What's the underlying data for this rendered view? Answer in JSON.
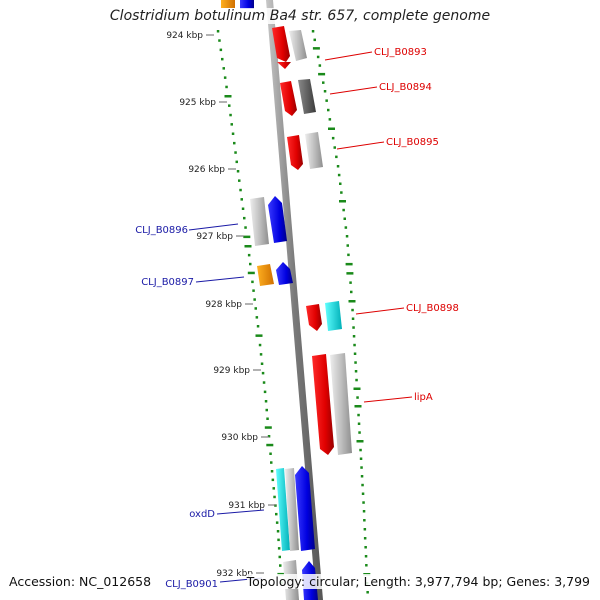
{
  "title": "Clostridium botulinum Ba4 str. 657, complete genome",
  "footer": {
    "accession": "Accession: NC_012658",
    "summary": "Topology: circular; Length: 3,977,794 bp; Genes: 3,799"
  },
  "ticks": [
    "924 kbp",
    "925 kbp",
    "926 kbp",
    "927 kbp",
    "928 kbp",
    "929 kbp",
    "930 kbp",
    "931 kbp",
    "932 kbp"
  ],
  "genes": [
    {
      "label": "CLJ_B0893",
      "side": "right",
      "color": "#dd0000"
    },
    {
      "label": "CLJ_B0894",
      "side": "right",
      "color": "#dd0000"
    },
    {
      "label": "CLJ_B0895",
      "side": "right",
      "color": "#dd0000"
    },
    {
      "label": "CLJ_B0896",
      "side": "left",
      "color": "#1a1aa6"
    },
    {
      "label": "CLJ_B0897",
      "side": "left",
      "color": "#1a1aa6"
    },
    {
      "label": "CLJ_B0898",
      "side": "right",
      "color": "#dd0000"
    },
    {
      "label": "lipA",
      "side": "right",
      "color": "#dd0000"
    },
    {
      "label": "oxdD",
      "side": "left",
      "color": "#1a1aa6"
    },
    {
      "label": "CLJ_B0901",
      "side": "left",
      "color": "#1a1aa6"
    }
  ],
  "colors": {
    "forward_cds": "#ff0000",
    "reverse_cds": "#0000ff",
    "gene": "#bdbdbd",
    "orange_feature": "#ff9900",
    "cyan_feature": "#00e0e0",
    "gc_dots": "#1a8a1a",
    "backbone": "#888888"
  }
}
